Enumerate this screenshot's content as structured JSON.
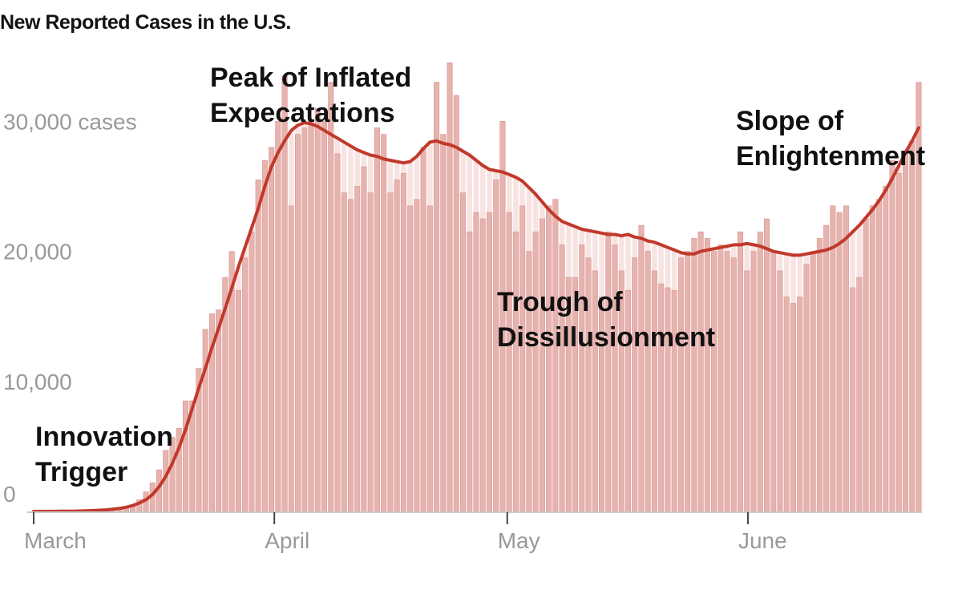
{
  "chart_data": {
    "type": "bar",
    "title": "New Reported Cases in the U.S.",
    "y_tick_labels": [
      "0",
      "10,000",
      "20,000",
      "30,000 cases"
    ],
    "y_ticks": [
      0,
      10000,
      20000,
      30000
    ],
    "ylim": [
      0,
      36000
    ],
    "x_tick_labels": [
      "March",
      "April",
      "May",
      "June"
    ],
    "x_tick_days": [
      0,
      31,
      61,
      92
    ],
    "x_range_days": [
      0,
      114
    ],
    "series": [
      {
        "name": "daily",
        "values": [
          0,
          0,
          0,
          0,
          10,
          10,
          20,
          20,
          30,
          40,
          60,
          80,
          120,
          200,
          300,
          500,
          900,
          1500,
          2200,
          3200,
          4700,
          5700,
          6400,
          8500,
          8500,
          11000,
          14000,
          15200,
          15500,
          18000,
          20000,
          17000,
          19500,
          21500,
          25500,
          27000,
          28000,
          30000,
          33500,
          23500,
          29000,
          29500,
          30000,
          31000,
          30000,
          33000,
          27500,
          24500,
          24000,
          25000,
          26500,
          24500,
          29500,
          29000,
          24500,
          25500,
          26000,
          23500,
          24000,
          28000,
          23500,
          33000,
          29000,
          34500,
          32000,
          24500,
          21500,
          23000,
          22500,
          23000,
          25500,
          30000,
          23000,
          21500,
          23500,
          20000,
          21500,
          22500,
          23500,
          24000,
          20500,
          18000,
          18000,
          20500,
          19500,
          18500,
          16500,
          21500,
          20500,
          18500,
          17000,
          19500,
          22000,
          20000,
          18500,
          17500,
          17200,
          17000,
          19500,
          20000,
          21000,
          21500,
          21000,
          20000,
          20500,
          20000,
          19500,
          21500,
          18500,
          20000,
          21500,
          22500,
          20000,
          18500,
          16500,
          16000,
          16500,
          19000,
          20000,
          21000,
          22000,
          23500,
          23000,
          23500,
          17200,
          18000,
          22500,
          23500,
          24000,
          25000,
          27000,
          26000,
          27500,
          28500,
          33000
        ]
      },
      {
        "name": "7-day average",
        "values": [
          0,
          0,
          0,
          0,
          10,
          10,
          20,
          30,
          50,
          70,
          90,
          120,
          170,
          230,
          320,
          450,
          650,
          900,
          1300,
          1900,
          2700,
          3700,
          4900,
          6300,
          7900,
          9500,
          11000,
          12600,
          14100,
          15600,
          17200,
          18800,
          20300,
          21800,
          23300,
          25000,
          26500,
          27600,
          28500,
          29300,
          29700,
          29900,
          29800,
          29600,
          29300,
          29000,
          28700,
          28400,
          28100,
          27800,
          27600,
          27400,
          27300,
          27100,
          27000,
          26900,
          26800,
          26900,
          27300,
          27900,
          28400,
          28500,
          28300,
          28200,
          28000,
          27700,
          27400,
          27000,
          26600,
          26300,
          26200,
          26100,
          25900,
          25700,
          25400,
          24900,
          24400,
          23800,
          23200,
          22700,
          22300,
          22100,
          21900,
          21700,
          21600,
          21500,
          21400,
          21300,
          21300,
          21200,
          21300,
          21100,
          21000,
          20800,
          20700,
          20500,
          20300,
          20100,
          19900,
          19800,
          19800,
          20000,
          20100,
          20200,
          20300,
          20400,
          20500,
          20500,
          20600,
          20500,
          20400,
          20200,
          20000,
          19900,
          19800,
          19700,
          19700,
          19800,
          19900,
          20000,
          20100,
          20300,
          20600,
          21000,
          21500,
          22000,
          22600,
          23200,
          23900,
          24700,
          25600,
          26600,
          27600,
          28500,
          29500
        ]
      }
    ],
    "annotations": [
      {
        "key": "innovation",
        "lines": [
          "Innovation",
          "Trigger"
        ]
      },
      {
        "key": "peak",
        "lines": [
          "Peak of Inflated",
          "Expecatations"
        ]
      },
      {
        "key": "trough",
        "lines": [
          "Trough of",
          "Dissillusionment"
        ]
      },
      {
        "key": "slope",
        "lines": [
          "Slope of",
          "Enlightenment"
        ]
      }
    ],
    "colors": {
      "bar": "#e7b3af",
      "bar_edge": "#d99590",
      "average_line": "#c0392b",
      "fill_between": "#f7e3e1",
      "axis": "#cccccc",
      "tick_text": "#999999"
    }
  }
}
